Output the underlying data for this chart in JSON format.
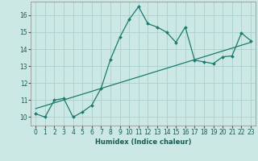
{
  "xlabel": "Humidex (Indice chaleur)",
  "xlim": [
    -0.5,
    23.5
  ],
  "ylim": [
    9.5,
    16.8
  ],
  "x_ticks": [
    0,
    1,
    2,
    3,
    4,
    5,
    6,
    7,
    8,
    9,
    10,
    11,
    12,
    13,
    14,
    15,
    16,
    17,
    18,
    19,
    20,
    21,
    22,
    23
  ],
  "y_ticks": [
    10,
    11,
    12,
    13,
    14,
    15,
    16
  ],
  "curve_x": [
    0,
    1,
    2,
    3,
    4,
    5,
    6,
    7,
    8,
    9,
    10,
    11,
    12,
    13,
    14,
    15,
    16,
    17,
    18,
    19,
    20,
    21,
    22,
    23
  ],
  "curve_y": [
    10.2,
    10.0,
    11.0,
    11.1,
    10.0,
    10.3,
    10.7,
    11.7,
    13.4,
    14.7,
    15.75,
    16.5,
    15.5,
    15.3,
    15.0,
    14.4,
    15.3,
    13.35,
    13.25,
    13.15,
    13.55,
    13.6,
    14.95,
    14.5
  ],
  "trend_x": [
    0,
    23
  ],
  "trend_y": [
    10.5,
    14.4
  ],
  "line_color": "#1a7a6e",
  "bg_color": "#cce8e4",
  "grid_color": "#aacfca",
  "title_fontsize": 7,
  "axis_fontsize": 6,
  "tick_fontsize": 5.5
}
